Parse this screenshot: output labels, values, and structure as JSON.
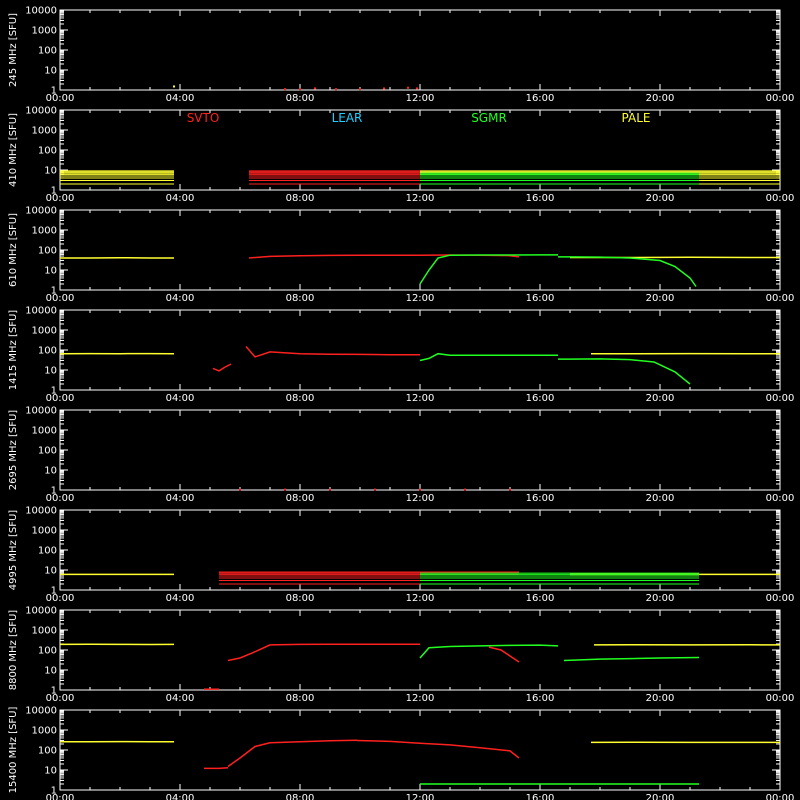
{
  "colors": {
    "background": "#000000",
    "axis": "#ffffff",
    "SVTO": "#ff2020",
    "LEAR": "#20d0ff",
    "SGMR": "#20ff20",
    "PALE": "#ffff30"
  },
  "legend": {
    "placement": "top-of-panel-2",
    "entries": [
      {
        "name": "SVTO",
        "color": "#ff2020"
      },
      {
        "name": "LEAR",
        "color": "#20d0ff"
      },
      {
        "name": "SGMR",
        "color": "#20ff20"
      },
      {
        "name": "PALE",
        "color": "#ffff30"
      }
    ]
  },
  "chart_data": [
    {
      "type": "scatter",
      "ylabel": "245 MHz [SFU]",
      "xlim": [
        0,
        24
      ],
      "ylim": [
        1,
        10000
      ],
      "yscale": "log",
      "x_ticks": [
        "00:00",
        "04:00",
        "08:00",
        "12:00",
        "16:00",
        "20:00",
        "00:00"
      ],
      "y_ticks": [
        "1",
        "10",
        "100",
        "1000",
        "10000"
      ],
      "series": [
        {
          "name": "SVTO",
          "color": "#ff2020",
          "x": [
            7.5,
            8.0,
            8.5,
            9.2,
            10.0,
            10.8,
            11.6,
            11.9
          ],
          "y": [
            1.1,
            1.1,
            1.2,
            1.1,
            1.1,
            1.2,
            1.3,
            1.2
          ]
        },
        {
          "name": "PALE",
          "color": "#ffff30",
          "x": [
            3.8
          ],
          "y": [
            1.5
          ]
        }
      ]
    },
    {
      "type": "scatter",
      "ylabel": "410 MHz [SFU]",
      "xlim": [
        0,
        24
      ],
      "ylim": [
        1,
        10000
      ],
      "yscale": "log",
      "x_ticks": [
        "00:00",
        "04:00",
        "08:00",
        "12:00",
        "16:00",
        "20:00",
        "00:00"
      ],
      "y_ticks": [
        "1",
        "10",
        "100",
        "1000",
        "10000"
      ],
      "series": [
        {
          "name": "PALE",
          "color": "#ffff30",
          "bands": [
            {
              "x0": 0,
              "x1": 3.8,
              "levels": [
                2,
                3,
                4,
                5,
                6,
                7,
                8,
                9
              ]
            },
            {
              "x0": 12.0,
              "x1": 24,
              "levels": [
                2,
                3,
                4,
                5,
                6,
                7,
                8,
                9
              ]
            }
          ]
        },
        {
          "name": "SVTO",
          "color": "#ff2020",
          "bands": [
            {
              "x0": 6.3,
              "x1": 12.0,
              "levels": [
                2,
                3,
                4,
                5,
                6,
                7,
                8,
                9
              ]
            }
          ]
        },
        {
          "name": "SGMR",
          "color": "#20ff20",
          "bands": [
            {
              "x0": 12.0,
              "x1": 21.3,
              "levels": [
                2,
                3,
                4,
                5,
                6,
                7
              ]
            }
          ]
        }
      ]
    },
    {
      "type": "line",
      "ylabel": "610 MHz [SFU]",
      "xlim": [
        0,
        24
      ],
      "ylim": [
        1,
        10000
      ],
      "yscale": "log",
      "x_ticks": [
        "00:00",
        "04:00",
        "08:00",
        "12:00",
        "16:00",
        "20:00",
        "00:00"
      ],
      "y_ticks": [
        "1",
        "10",
        "100",
        "1000",
        "10000"
      ],
      "series": [
        {
          "name": "PALE",
          "color": "#ffff30",
          "segments": [
            {
              "x": [
                0,
                1,
                2,
                3,
                3.8
              ],
              "y": [
                40,
                40,
                41,
                40,
                40
              ]
            },
            {
              "x": [
                17.0,
                19.0,
                21.0,
                23.0,
                24.0
              ],
              "y": [
                42,
                42,
                43,
                42,
                42
              ]
            }
          ]
        },
        {
          "name": "SVTO",
          "color": "#ff2020",
          "segments": [
            {
              "x": [
                6.3,
                7.0,
                8.0,
                9.0,
                10.0,
                11.0,
                12.0,
                13.0,
                14.0,
                15.0,
                15.3
              ],
              "y": [
                40,
                48,
                52,
                54,
                55,
                55,
                55,
                56,
                55,
                52,
                45
              ]
            }
          ]
        },
        {
          "name": "SGMR",
          "color": "#20ff20",
          "segments": [
            {
              "x": [
                12.0,
                12.3,
                12.6,
                13.0,
                14.0,
                15.0,
                16.0,
                16.6
              ],
              "y": [
                2,
                10,
                40,
                55,
                56,
                56,
                57,
                57
              ]
            },
            {
              "x": [
                16.6,
                17.0,
                18.0,
                19.0,
                20.0,
                20.5,
                21.0,
                21.2
              ],
              "y": [
                45,
                45,
                44,
                40,
                30,
                15,
                4,
                1.5
              ]
            }
          ]
        }
      ]
    },
    {
      "type": "line",
      "ylabel": "1415 MHz [SFU]",
      "xlim": [
        0,
        24
      ],
      "ylim": [
        1,
        10000
      ],
      "yscale": "log",
      "x_ticks": [
        "00:00",
        "04:00",
        "08:00",
        "12:00",
        "16:00",
        "20:00",
        "00:00"
      ],
      "y_ticks": [
        "1",
        "10",
        "100",
        "1000",
        "10000"
      ],
      "series": [
        {
          "name": "PALE",
          "color": "#ffff30",
          "segments": [
            {
              "x": [
                0,
                1,
                2,
                3,
                3.8
              ],
              "y": [
                65,
                66,
                65,
                66,
                65
              ]
            },
            {
              "x": [
                17.7,
                19.0,
                21.0,
                23.0,
                24.0
              ],
              "y": [
                65,
                65,
                66,
                65,
                65
              ]
            }
          ]
        },
        {
          "name": "SVTO",
          "color": "#ff2020",
          "segments": [
            {
              "x": [
                5.1,
                5.3,
                5.5,
                5.7
              ],
              "y": [
                12,
                9,
                14,
                20
              ]
            },
            {
              "x": [
                6.2,
                6.5,
                7.0,
                8.0,
                9.0,
                10.0,
                11.0,
                12.0
              ],
              "y": [
                150,
                45,
                80,
                65,
                62,
                60,
                58,
                58
              ]
            }
          ]
        },
        {
          "name": "SGMR",
          "color": "#20ff20",
          "segments": [
            {
              "x": [
                12.0,
                12.3,
                12.6,
                13.0,
                14.0,
                15.0,
                16.0,
                16.6
              ],
              "y": [
                30,
                38,
                65,
                55,
                55,
                55,
                55,
                55
              ]
            },
            {
              "x": [
                16.6,
                17.0,
                18.0,
                19.0,
                19.8,
                20.5,
                21.0
              ],
              "y": [
                35,
                35,
                36,
                33,
                25,
                8,
                2
              ]
            }
          ]
        }
      ]
    },
    {
      "type": "scatter",
      "ylabel": "2695 MHz [SFU]",
      "xlim": [
        0,
        24
      ],
      "ylim": [
        1,
        10000
      ],
      "yscale": "log",
      "x_ticks": [
        "00:00",
        "04:00",
        "08:00",
        "12:00",
        "16:00",
        "20:00",
        "00:00"
      ],
      "y_ticks": [
        "1",
        "10",
        "100",
        "1000",
        "10000"
      ],
      "series": [
        {
          "name": "SVTO",
          "color": "#ff2020",
          "x": [
            6.0,
            7.5,
            9.0,
            10.5,
            12.0,
            13.5,
            15.0
          ],
          "y": [
            1.05,
            1.05,
            1.05,
            1.05,
            1.05,
            1.05,
            1.05
          ]
        }
      ]
    },
    {
      "type": "scatter",
      "ylabel": "4995 MHz [SFU]",
      "xlim": [
        0,
        24
      ],
      "ylim": [
        1,
        10000
      ],
      "yscale": "log",
      "x_ticks": [
        "00:00",
        "04:00",
        "08:00",
        "12:00",
        "16:00",
        "20:00",
        "00:00"
      ],
      "y_ticks": [
        "1",
        "10",
        "100",
        "1000",
        "10000"
      ],
      "series": [
        {
          "name": "PALE",
          "color": "#ffff30",
          "segments": [
            {
              "x": [
                0,
                3.8
              ],
              "y": [
                6,
                6
              ]
            },
            {
              "x": [
                17.0,
                24.0
              ],
              "y": [
                6,
                6
              ]
            }
          ]
        },
        {
          "name": "SVTO",
          "color": "#ff2020",
          "bands": [
            {
              "x0": 5.3,
              "x1": 15.3,
              "levels": [
                2,
                3,
                4,
                5,
                6,
                7,
                8
              ]
            }
          ]
        },
        {
          "name": "SGMR",
          "color": "#20ff20",
          "bands": [
            {
              "x0": 12.0,
              "x1": 21.3,
              "levels": [
                2,
                3,
                4,
                5,
                6,
                7
              ]
            }
          ]
        }
      ]
    },
    {
      "type": "line",
      "ylabel": "8800 MHz [SFU]",
      "xlim": [
        0,
        24
      ],
      "ylim": [
        1,
        10000
      ],
      "yscale": "log",
      "x_ticks": [
        "00:00",
        "04:00",
        "08:00",
        "12:00",
        "16:00",
        "20:00",
        "00:00"
      ],
      "y_ticks": [
        "1",
        "10",
        "100",
        "1000",
        "10000"
      ],
      "series": [
        {
          "name": "PALE",
          "color": "#ffff30",
          "segments": [
            {
              "x": [
                0,
                1,
                2,
                3,
                3.8
              ],
              "y": [
                190,
                192,
                190,
                188,
                190
              ]
            },
            {
              "x": [
                17.8,
                19.0,
                21.0,
                23.0,
                24.0
              ],
              "y": [
                180,
                182,
                180,
                181,
                180
              ]
            }
          ]
        },
        {
          "name": "SVTO",
          "color": "#ff2020",
          "segments": [
            {
              "x": [
                4.8,
                5.3
              ],
              "y": [
                1.1,
                1.1
              ]
            },
            {
              "x": [
                5.6,
                6.0,
                6.4,
                7.0,
                8.0,
                9.0,
                10.0,
                11.0,
                12.0
              ],
              "y": [
                30,
                40,
                70,
                180,
                190,
                195,
                195,
                195,
                195
              ]
            },
            {
              "x": [
                14.3,
                14.7,
                15.0,
                15.3
              ],
              "y": [
                140,
                100,
                50,
                25
              ]
            }
          ]
        },
        {
          "name": "SGMR",
          "color": "#20ff20",
          "segments": [
            {
              "x": [
                12.0,
                12.3,
                13.0,
                14.0,
                15.0,
                16.0,
                16.6
              ],
              "y": [
                40,
                130,
                150,
                160,
                170,
                175,
                160
              ]
            },
            {
              "x": [
                16.8,
                18.0,
                19.0,
                20.0,
                21.3
              ],
              "y": [
                30,
                35,
                37,
                40,
                42
              ]
            }
          ]
        }
      ]
    },
    {
      "type": "line",
      "ylabel": "15400 MHz [SFU]",
      "xlim": [
        0,
        24
      ],
      "ylim": [
        1,
        10000
      ],
      "yscale": "log",
      "x_ticks": [
        "00:00",
        "04:00",
        "08:00",
        "12:00",
        "16:00",
        "20:00",
        "00:00"
      ],
      "y_ticks": [
        "1",
        "10",
        "100",
        "1000",
        "10000"
      ],
      "series": [
        {
          "name": "PALE",
          "color": "#ffff30",
          "segments": [
            {
              "x": [
                0,
                1,
                2,
                3,
                3.8
              ],
              "y": [
                260,
                260,
                262,
                258,
                260
              ]
            },
            {
              "x": [
                17.7,
                19.0,
                21.0,
                23.0,
                24.0
              ],
              "y": [
                240,
                242,
                240,
                241,
                240
              ]
            }
          ]
        },
        {
          "name": "SVTO",
          "color": "#ff2020",
          "segments": [
            {
              "x": [
                4.8,
                5.3,
                5.6
              ],
              "y": [
                12,
                12,
                13
              ]
            },
            {
              "x": [
                5.6,
                6.0,
                6.5,
                7.0,
                8.0,
                9.0,
                9.9
              ],
              "y": [
                15,
                40,
                150,
                230,
                260,
                290,
                310
              ]
            },
            {
              "x": [
                9.9,
                11.0,
                12.0,
                13.0,
                14.0,
                15.0,
                15.3
              ],
              "y": [
                300,
                270,
                220,
                180,
                130,
                90,
                40
              ]
            }
          ]
        },
        {
          "name": "SGMR",
          "color": "#20ff20",
          "segments": [
            {
              "x": [
                12.0,
                21.3
              ],
              "y": [
                2,
                2
              ]
            }
          ]
        }
      ]
    }
  ]
}
